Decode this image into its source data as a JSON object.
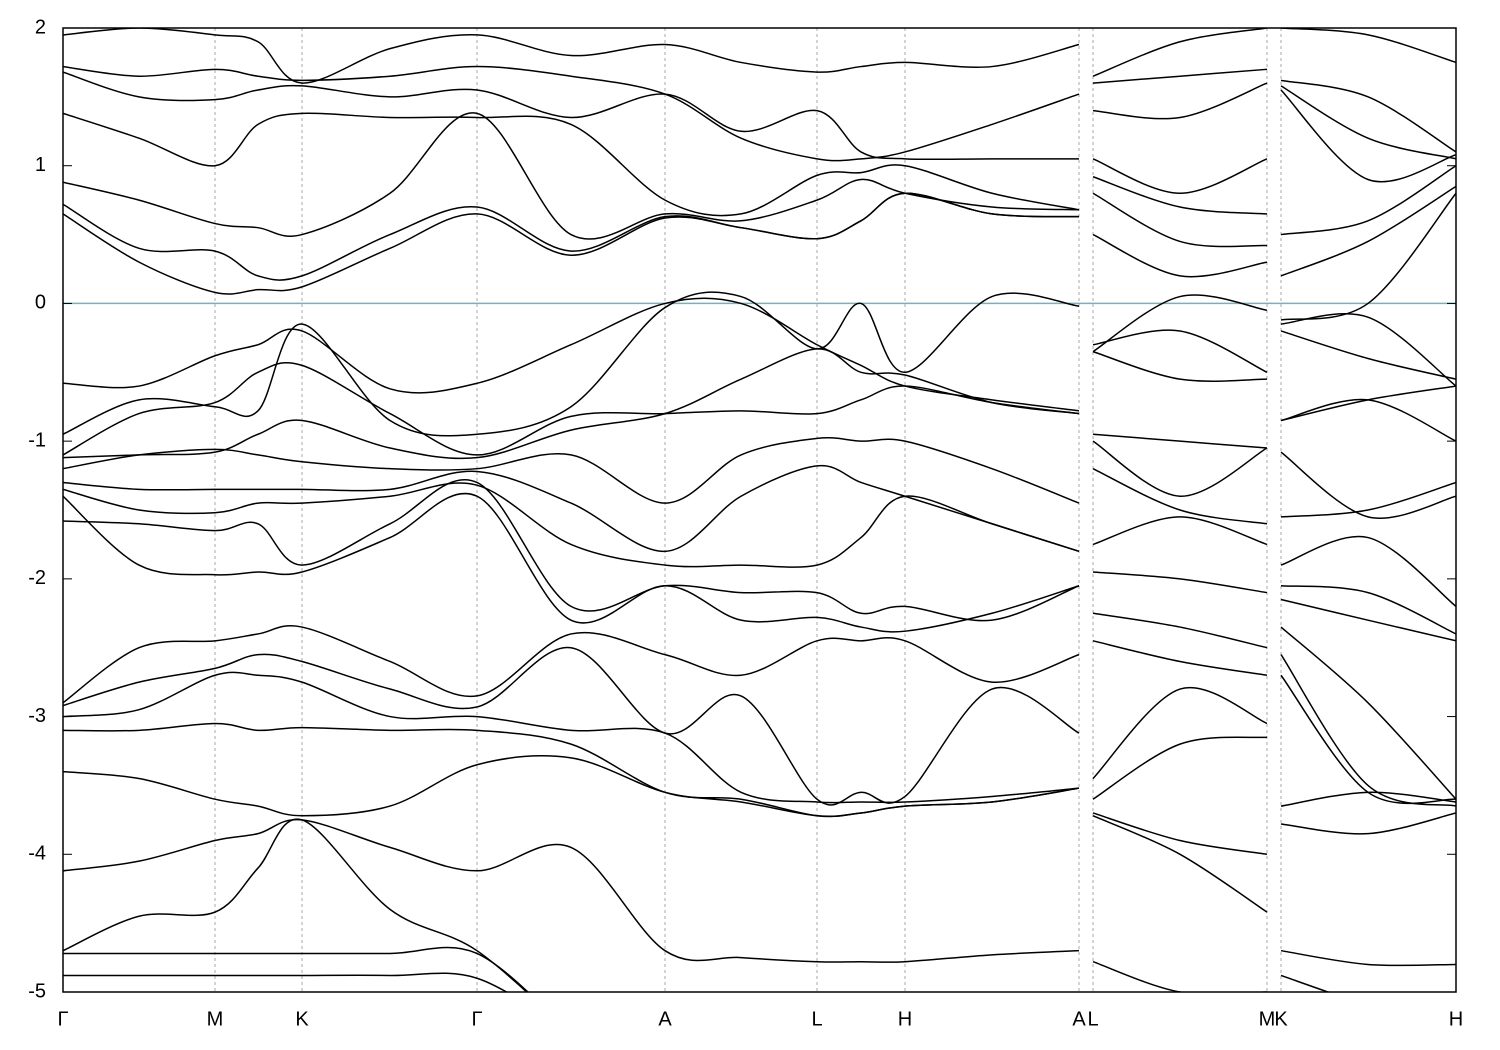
{
  "chart_data": {
    "type": "line",
    "xlim": [
      0,
      13.93
    ],
    "ylim": [
      -5,
      2
    ],
    "yticks": [
      -5,
      -4,
      -3,
      -2,
      -1,
      0,
      1,
      2
    ],
    "xticks": [
      {
        "value": 0,
        "label": "Γ"
      },
      {
        "value": 1.52,
        "label": "M"
      },
      {
        "value": 2.39,
        "label": "K"
      },
      {
        "value": 4.14,
        "label": "Γ"
      },
      {
        "value": 6.02,
        "label": "A"
      },
      {
        "value": 7.54,
        "label": "L"
      },
      {
        "value": 8.42,
        "label": "H"
      },
      {
        "value": 10.16,
        "label": "A"
      },
      {
        "value": 10.3,
        "label": "L"
      },
      {
        "value": 12.04,
        "label": "M"
      },
      {
        "value": 12.18,
        "label": "K"
      },
      {
        "value": 13.93,
        "label": "H"
      }
    ],
    "grid": true,
    "reference_line": {
      "value": 0,
      "color": "#6cb4c8"
    },
    "x": [
      0,
      0.76,
      1.52,
      1.95,
      2.39,
      3.27,
      4.14,
      5.08,
      6.02,
      6.78,
      7.54,
      7.98,
      8.42,
      9.29,
      10.16,
      null,
      10.3,
      11.17,
      12.04,
      null,
      12.18,
      13.05,
      13.93
    ],
    "series": [
      {
        "color": "#000000",
        "values": [
          1.95,
          2.0,
          1.95,
          1.9,
          1.6,
          1.85,
          1.95,
          1.8,
          1.88,
          1.75,
          1.68,
          1.72,
          1.75,
          1.72,
          1.88,
          null,
          1.65,
          1.9,
          2.0,
          null,
          2.0,
          1.95,
          1.75
        ]
      },
      {
        "color": "#000000",
        "values": [
          1.72,
          1.65,
          1.7,
          1.65,
          1.62,
          1.65,
          1.72,
          1.65,
          1.52,
          1.2,
          1.05,
          1.05,
          1.1,
          1.3,
          1.52,
          null,
          1.6,
          1.65,
          1.7,
          null,
          1.62,
          1.5,
          1.1
        ]
      },
      {
        "color": "#000000",
        "values": [
          1.68,
          1.5,
          1.48,
          1.55,
          1.58,
          1.5,
          1.55,
          1.35,
          1.52,
          1.25,
          1.4,
          1.1,
          1.05,
          1.05,
          1.05,
          null,
          1.4,
          1.35,
          1.6,
          null,
          1.58,
          1.2,
          1.05
        ]
      },
      {
        "color": "#000000",
        "values": [
          1.38,
          1.2,
          1.0,
          1.3,
          1.38,
          1.35,
          1.35,
          1.3,
          0.75,
          0.65,
          0.93,
          0.95,
          1.0,
          0.8,
          0.68,
          null,
          1.05,
          0.8,
          1.05,
          null,
          1.55,
          0.9,
          1.08
        ]
      },
      {
        "color": "#000000",
        "values": [
          0.88,
          0.75,
          0.58,
          0.55,
          0.5,
          0.8,
          1.38,
          0.5,
          0.65,
          0.6,
          0.75,
          0.9,
          0.8,
          0.7,
          0.68,
          null,
          0.92,
          0.7,
          0.65,
          null,
          0.5,
          0.6,
          1.0
        ]
      },
      {
        "color": "#000000",
        "values": [
          0.72,
          0.4,
          0.38,
          0.2,
          0.2,
          0.5,
          0.7,
          0.38,
          0.63,
          0.55,
          0.47,
          0.6,
          0.8,
          0.65,
          0.63,
          null,
          0.8,
          0.45,
          0.42,
          null,
          0.2,
          0.45,
          0.85
        ]
      },
      {
        "color": "#000000",
        "values": [
          0.65,
          0.3,
          0.08,
          0.1,
          0.12,
          0.4,
          0.65,
          0.35,
          0.62,
          0.55,
          0.47,
          0.6,
          0.8,
          0.65,
          0.63,
          null,
          0.5,
          0.2,
          0.3,
          null,
          -0.12,
          0.0,
          0.8
        ]
      },
      {
        "color": "#000000",
        "values": [
          -0.58,
          -0.6,
          -0.38,
          -0.3,
          -0.2,
          -0.62,
          -0.58,
          -0.3,
          0.0,
          0.0,
          -0.3,
          -0.45,
          -0.6,
          -0.7,
          -0.78,
          null,
          -0.3,
          -0.2,
          -0.5,
          null,
          -0.2,
          -0.4,
          -0.55
        ]
      },
      {
        "color": "#000000",
        "values": [
          -0.95,
          -0.7,
          -0.75,
          -0.78,
          -0.15,
          -0.85,
          -0.95,
          -0.75,
          -0.03,
          0.05,
          -0.33,
          0.0,
          -0.5,
          0.05,
          -0.02,
          null,
          -0.35,
          0.05,
          -0.05,
          null,
          -0.15,
          -0.1,
          -0.6
        ]
      },
      {
        "color": "#000000",
        "values": [
          -1.1,
          -0.8,
          -0.72,
          -0.5,
          -0.45,
          -0.8,
          -1.1,
          -0.82,
          -0.8,
          -0.78,
          -0.8,
          -0.7,
          -0.6,
          -0.72,
          -0.8,
          null,
          -0.35,
          -0.55,
          -0.55,
          null,
          -0.85,
          -0.7,
          -0.6
        ]
      },
      {
        "color": "#000000",
        "values": [
          -1.12,
          -1.1,
          -1.08,
          -0.95,
          -0.85,
          -1.05,
          -1.12,
          -0.92,
          -0.8,
          -0.55,
          -0.33,
          -0.5,
          -0.52,
          -0.72,
          -0.8,
          null,
          -0.95,
          -1.0,
          -1.05,
          null,
          -0.85,
          -0.7,
          -1.0
        ]
      },
      {
        "color": "#000000",
        "values": [
          -1.2,
          -1.1,
          -1.06,
          -1.1,
          -1.15,
          -1.2,
          -1.2,
          -1.1,
          -1.45,
          -1.1,
          -0.98,
          -1.0,
          -1.0,
          -1.2,
          -1.45,
          null,
          -1.0,
          -1.4,
          -1.05,
          null,
          -1.08,
          -1.55,
          -1.4
        ]
      },
      {
        "color": "#000000",
        "values": [
          -1.3,
          -1.35,
          -1.35,
          -1.35,
          -1.35,
          -1.35,
          -1.22,
          -1.45,
          -1.8,
          -1.4,
          -1.18,
          -1.3,
          -1.4,
          -1.6,
          -1.8,
          null,
          -1.2,
          -1.5,
          -1.6,
          null,
          -1.55,
          -1.5,
          -1.3
        ]
      },
      {
        "color": "#000000",
        "values": [
          -1.35,
          -1.5,
          -1.52,
          -1.45,
          -1.45,
          -1.4,
          -1.32,
          -1.75,
          -1.9,
          -1.9,
          -1.9,
          -1.7,
          -1.4,
          -1.6,
          -1.8,
          null,
          -1.75,
          -1.55,
          -1.75,
          null,
          -1.9,
          -1.7,
          -2.2
        ]
      },
      {
        "color": "#000000",
        "values": [
          -1.58,
          -1.6,
          -1.65,
          -1.6,
          -1.9,
          -1.6,
          -1.3,
          -2.2,
          -2.05,
          -2.1,
          -2.1,
          -2.25,
          -2.2,
          -2.3,
          -2.05,
          null,
          -1.95,
          -2.0,
          -2.1,
          null,
          -2.05,
          -2.1,
          -2.4
        ]
      },
      {
        "color": "#000000",
        "values": [
          -1.4,
          -1.9,
          -1.97,
          -1.95,
          -1.95,
          -1.7,
          -1.4,
          -2.3,
          -2.05,
          -2.3,
          -2.28,
          -2.35,
          -2.38,
          -2.25,
          -2.05,
          null,
          -2.25,
          -2.35,
          -2.5,
          null,
          -2.15,
          -2.3,
          -2.45
        ]
      },
      {
        "color": "#000000",
        "values": [
          -2.9,
          -2.5,
          -2.45,
          -2.4,
          -2.35,
          -2.6,
          -2.85,
          -2.4,
          -2.55,
          -2.7,
          -2.45,
          -2.45,
          -2.45,
          -2.75,
          -2.55,
          null,
          -2.45,
          -2.6,
          -2.7,
          null,
          -2.35,
          -2.9,
          -3.6
        ]
      },
      {
        "color": "#000000",
        "values": [
          -2.92,
          -2.75,
          -2.65,
          -2.55,
          -2.6,
          -2.8,
          -2.93,
          -2.5,
          -3.12,
          -2.85,
          -3.6,
          -3.55,
          -3.58,
          -2.8,
          -3.12,
          null,
          -3.45,
          -2.8,
          -3.05,
          null,
          -2.55,
          -3.5,
          -3.65
        ]
      },
      {
        "color": "#000000",
        "values": [
          -3.0,
          -2.95,
          -2.7,
          -2.7,
          -2.75,
          -3.0,
          -3.0,
          -3.1,
          -3.12,
          -3.55,
          -3.62,
          -3.62,
          -3.62,
          -3.58,
          -3.52,
          null,
          -3.6,
          -3.2,
          -3.15,
          null,
          -2.7,
          -3.55,
          -3.6
        ]
      },
      {
        "color": "#000000",
        "values": [
          -3.1,
          -3.1,
          -3.05,
          -3.1,
          -3.08,
          -3.1,
          -3.1,
          -3.2,
          -3.55,
          -3.6,
          -3.72,
          -3.7,
          -3.65,
          -3.62,
          -3.52,
          null,
          -3.7,
          -3.9,
          -4.0,
          null,
          -3.65,
          -3.55,
          -3.62
        ]
      },
      {
        "color": "#000000",
        "values": [
          -3.4,
          -3.45,
          -3.6,
          -3.65,
          -3.72,
          -3.65,
          -3.35,
          -3.3,
          -3.55,
          -3.62,
          -3.72,
          -3.7,
          -3.65,
          -3.62,
          -3.52,
          null,
          -3.72,
          -4.0,
          -4.42,
          null,
          -3.78,
          -3.85,
          -3.7
        ]
      },
      {
        "color": "#000000",
        "values": [
          -4.12,
          -4.05,
          -3.9,
          -3.85,
          -3.75,
          -3.95,
          -4.12,
          -3.95,
          -4.7,
          -4.75,
          -4.78,
          -4.78,
          -4.78,
          -4.73,
          -4.7,
          null,
          -4.78,
          -5.0,
          -5.0,
          null,
          -4.7,
          -4.8,
          -4.8
        ]
      },
      {
        "color": "#000000",
        "values": [
          -4.7,
          -4.45,
          -4.42,
          -4.1,
          -3.75,
          -4.4,
          -4.7,
          -5.3,
          null,
          null,
          null,
          null,
          null,
          null,
          null,
          null,
          null,
          null,
          null,
          null,
          -4.88,
          -5.1,
          -5.3
        ]
      },
      {
        "color": "#000000",
        "values": [
          -4.72,
          -4.72,
          -4.72,
          -4.72,
          -4.72,
          -4.72,
          -4.72,
          -5.3,
          null,
          null,
          null,
          null,
          null,
          null,
          null,
          null,
          null,
          null,
          null,
          null,
          null,
          null,
          null
        ]
      },
      {
        "color": "#000000",
        "values": [
          -4.88,
          -4.88,
          -4.88,
          -4.88,
          -4.88,
          -4.88,
          -4.9,
          -5.3,
          null,
          null,
          null,
          null,
          null,
          null,
          null,
          null,
          null,
          null,
          null,
          null,
          null,
          null,
          null
        ]
      }
    ]
  }
}
